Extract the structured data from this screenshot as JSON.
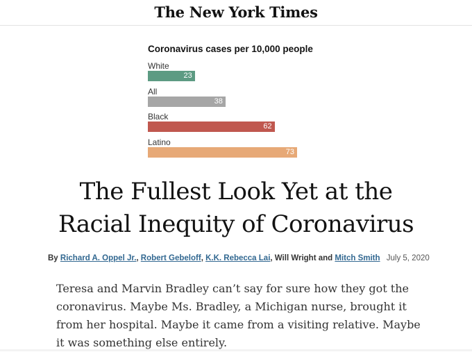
{
  "masthead": {
    "logo_text": "The New York Times"
  },
  "chart_data": {
    "type": "bar",
    "title": "Coronavirus cases per 10,000 people",
    "categories": [
      "White",
      "All",
      "Black",
      "Latino"
    ],
    "values": [
      23,
      38,
      62,
      73
    ],
    "colors": [
      "#5d9b83",
      "#a6a6a6",
      "#c0584f",
      "#e7a977"
    ],
    "xlabel": "",
    "ylabel": "",
    "xlim": [
      0,
      73
    ]
  },
  "article": {
    "headline_line1": "The Fullest Look Yet at the",
    "headline_line2": "Racial Inequity of Coronavirus",
    "byline": {
      "prefix": "By",
      "authors": [
        {
          "name": "Richard A. Oppel Jr.",
          "link": true,
          "sep": ", "
        },
        {
          "name": "Robert Gebeloff",
          "link": true,
          "sep": ", "
        },
        {
          "name": "K.K. Rebecca Lai",
          "link": true,
          "sep": ", "
        },
        {
          "name": "Will Wright",
          "link": false,
          "sep": " and "
        },
        {
          "name": "Mitch Smith",
          "link": true,
          "sep": ""
        }
      ],
      "date": "July 5, 2020"
    },
    "body": "Teresa and Marvin Bradley can’t say for sure how they got the coronavirus. Maybe Ms. Bradley, a Michigan nurse, brought it from her hospital. Maybe it came from a visiting relative. Maybe it was something else entirely."
  }
}
